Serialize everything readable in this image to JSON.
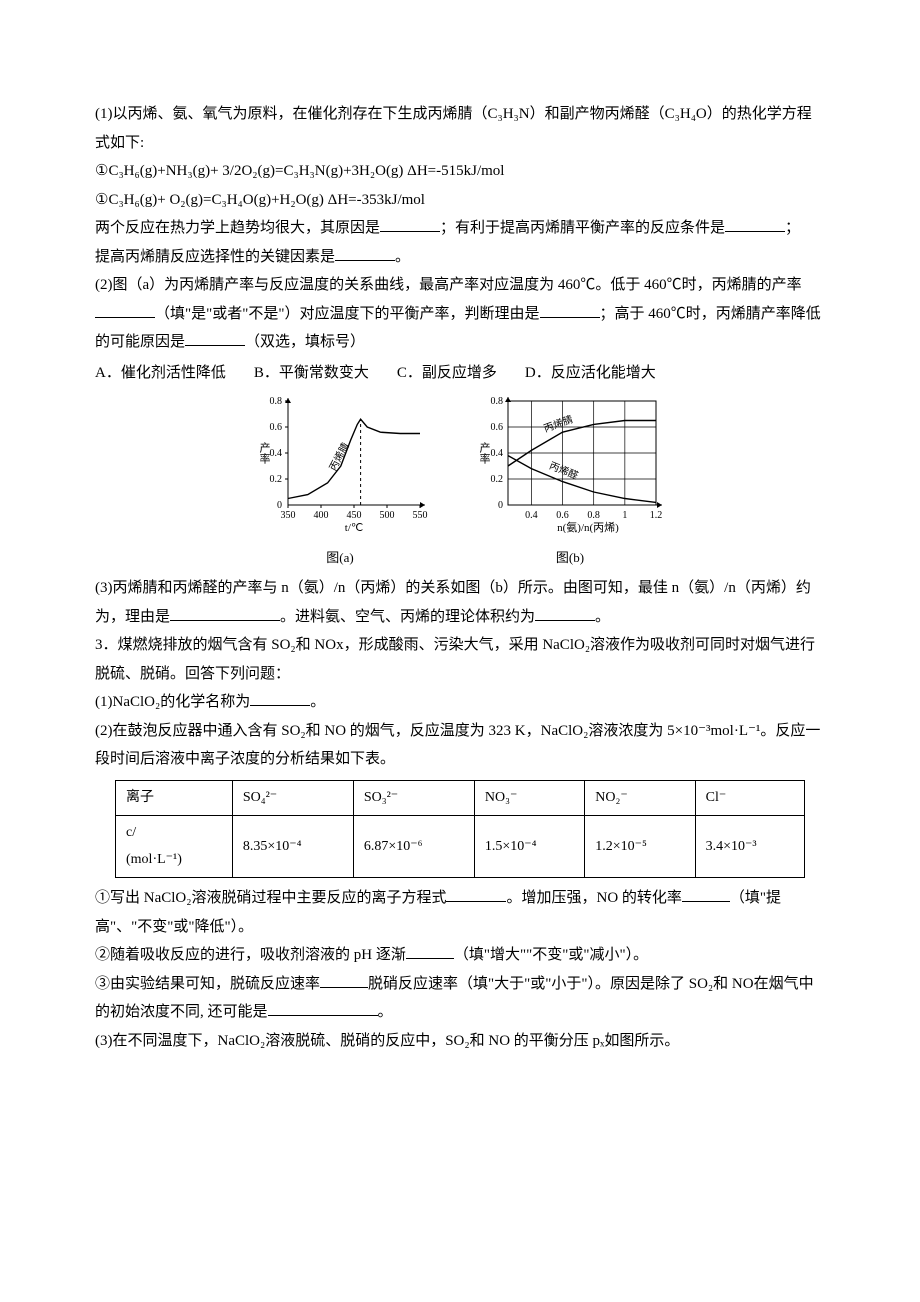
{
  "p1": "(1)以丙烯、氨、氧气为原料，在催化剂存在下生成丙烯腈（C₃H₃N）和副产物丙烯醛（C₃H₄O）的热化学方程式如下:",
  "eq1": "①C₃H₆(g)+NH₃(g)+ 3/2O₂(g)=C₃H₃N(g)+3H₂O(g)    ΔH=-515kJ/mol",
  "eq2": "①C₃H₆(g)+ O₂(g)=C₃H₄O(g)+H₂O(g)    ΔH=-353kJ/mol",
  "p2a": "两个反应在热力学上趋势均很大，其原因是",
  "p2b": "；有利于提高丙烯腈平衡产率的反应条件是",
  "p2c": "；",
  "p3a": "提高丙烯腈反应选择性的关键因素是",
  "p3b": "。",
  "p4": "(2)图（a）为丙烯腈产率与反应温度的关系曲线，最高产率对应温度为 460℃。低于 460℃时，丙烯腈的产率",
  "p4b": "（填\"是\"或者\"不是\"）对应温度下的平衡产率，判断理由是",
  "p4c": "；高于 460℃时，丙烯腈产率降低的可能原因是",
  "p4d": "（双选，填标号）",
  "options": {
    "A": "A．催化剂活性降低",
    "B": "B．平衡常数变大",
    "C": "C．副反应增多",
    "D": "D．反应活化能增大"
  },
  "chartA": {
    "type": "line",
    "caption": "图(a)",
    "xlabel": "t/℃",
    "ylabel": "产率",
    "curve_label": "丙烯腈",
    "xlim": [
      350,
      550
    ],
    "xtick_step": 50,
    "ylim": [
      0,
      0.8
    ],
    "ytick_step": 0.2,
    "background_color": "#ffffff",
    "curve_color": "#000000",
    "axis_color": "#000000",
    "tick_fontsize": 10,
    "label_fontsize": 11,
    "points": [
      [
        350,
        0.05
      ],
      [
        380,
        0.08
      ],
      [
        410,
        0.17
      ],
      [
        430,
        0.3
      ],
      [
        445,
        0.5
      ],
      [
        455,
        0.62
      ],
      [
        460,
        0.66
      ],
      [
        470,
        0.6
      ],
      [
        490,
        0.56
      ],
      [
        520,
        0.55
      ],
      [
        550,
        0.55
      ]
    ],
    "vline_x": 460,
    "vline_dash": "3,3"
  },
  "chartB": {
    "type": "line",
    "caption": "图(b)",
    "xlabel": "n(氨)/n(丙烯)",
    "ylabel": "产率",
    "curve1_label": "丙烯腈",
    "curve2_label": "丙烯醛",
    "xlim": [
      0.25,
      1.2
    ],
    "xticks": [
      0.4,
      0.6,
      0.8,
      1.0,
      1.2
    ],
    "ylim": [
      0,
      0.8
    ],
    "ytick_step": 0.2,
    "background_color": "#ffffff",
    "curve_color": "#000000",
    "grid_color": "#000000",
    "tick_fontsize": 10,
    "label_fontsize": 11,
    "curve1_points": [
      [
        0.25,
        0.3
      ],
      [
        0.4,
        0.42
      ],
      [
        0.6,
        0.56
      ],
      [
        0.8,
        0.62
      ],
      [
        1.0,
        0.65
      ],
      [
        1.2,
        0.65
      ]
    ],
    "curve2_points": [
      [
        0.25,
        0.38
      ],
      [
        0.4,
        0.28
      ],
      [
        0.6,
        0.18
      ],
      [
        0.8,
        0.1
      ],
      [
        1.0,
        0.05
      ],
      [
        1.2,
        0.02
      ]
    ]
  },
  "p5a": "(3)丙烯腈和丙烯醛的产率与 n（氨）/n（丙烯）的关系如图（b）所示。由图可知，最佳 n（氨）/n（丙烯）约为，理由是",
  "p5b": "。进料氨、空气、丙烯的理论体积约为",
  "p5c": "。",
  "p6": "3．煤燃烧排放的烟气含有 SO₂和 NOx，形成酸雨、污染大气，采用 NaClO₂溶液作为吸收剂可同时对烟气进行脱硫、脱硝。回答下列问题：",
  "p7a": "(1)NaClO₂的化学名称为",
  "p7b": "。",
  "p8": "(2)在鼓泡反应器中通入含有 SO₂和 NO 的烟气，反应温度为 323 K，NaClO₂溶液浓度为 5×10⁻³mol·L⁻¹。反应一段时间后溶液中离子浓度的分析结果如下表。",
  "table": {
    "header_label": "离子",
    "row_label_1": "c/",
    "row_label_2": "(mol·L⁻¹)",
    "columns": [
      "SO₄²⁻",
      "SO₃²⁻",
      "NO₃⁻",
      "NO₂⁻",
      "Cl⁻"
    ],
    "values": [
      "8.35×10⁻⁴",
      "6.87×10⁻⁶",
      "1.5×10⁻⁴",
      "1.2×10⁻⁵",
      "3.4×10⁻³"
    ]
  },
  "p9a": "①写出 NaClO₂溶液脱硝过程中主要反应的离子方程式",
  "p9b": "。增加压强，NO 的转化率",
  "p9c": "（填\"提高\"、\"不变\"或\"降低\"）。",
  "p10a": "②随着吸收反应的进行，吸收剂溶液的 pH 逐渐",
  "p10b": "（填\"增大\"\"不变\"或\"减小\"）。",
  "p11a": "③由实验结果可知，脱硫反应速率",
  "p11b": "脱硝反应速率（填\"大于\"或\"小于\"）。原因是除了 SO₂和 NO在烟气中的初始浓度不同, 还可能是",
  "p11c": "。",
  "p12": "(3)在不同温度下，NaClO₂溶液脱硫、脱硝的反应中，SO₂和 NO 的平衡分压 pₓ如图所示。"
}
